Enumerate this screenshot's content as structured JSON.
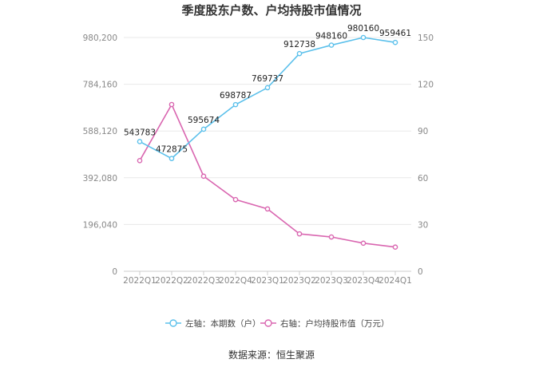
{
  "chart_data": {
    "type": "line",
    "title": "季度股东户数、户均持股市值情况",
    "categories": [
      "2022Q1",
      "2022Q2",
      "2022Q3",
      "2022Q4",
      "2023Q1",
      "2023Q2",
      "2023Q3",
      "2023Q4",
      "2024Q1"
    ],
    "left_axis": {
      "ylim": [
        0,
        980200
      ],
      "ticks": [
        "0",
        "196,040",
        "392,080",
        "588,120",
        "784,160",
        "980,200"
      ]
    },
    "right_axis": {
      "ylim": [
        0,
        150
      ],
      "ticks": [
        "0",
        "30",
        "60",
        "90",
        "120",
        "150"
      ]
    },
    "series": [
      {
        "name": "左轴：本期数（户）",
        "axis": "left",
        "color": "#5bc0eb",
        "values": [
          543783,
          472875,
          595674,
          698787,
          769737,
          912738,
          948160,
          980160,
          959461
        ],
        "labels": [
          "543783",
          "472875",
          "595674",
          "698787",
          "769737",
          "912738",
          "948160",
          "980160",
          "959461"
        ]
      },
      {
        "name": "右轴：户均持股市值（万元）",
        "axis": "right",
        "color": "#d966b0",
        "values": [
          71,
          107,
          61,
          46,
          40,
          24,
          22,
          18,
          15.5
        ]
      }
    ],
    "legend_position": "bottom",
    "grid": true
  },
  "source": "数据来源：恒生聚源"
}
